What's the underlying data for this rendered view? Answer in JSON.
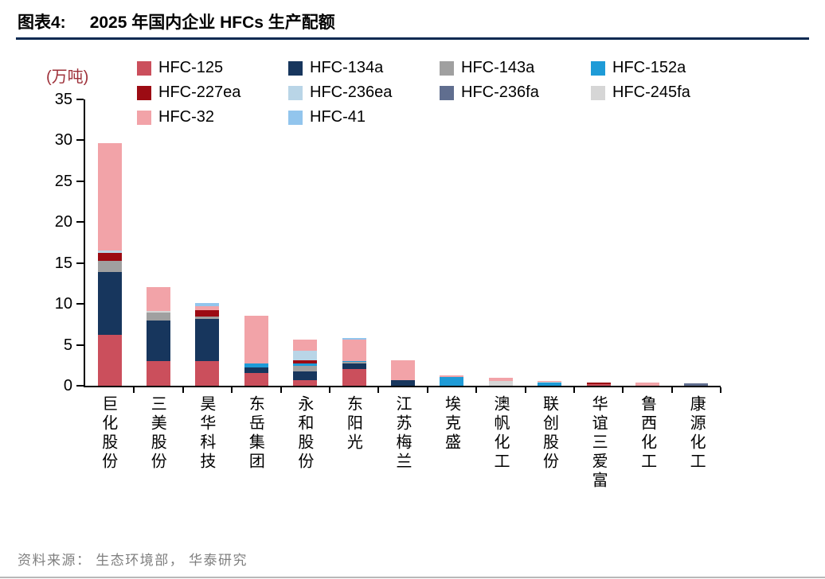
{
  "header": {
    "figure_label": "图表4:",
    "title": "2025 年国内企业 HFCs 生产配额"
  },
  "footer": {
    "source": "资料来源： 生态环境部， 华泰研究"
  },
  "chart_data": {
    "type": "bar",
    "stacked": true,
    "title": "2025 年国内企业 HFCs 生产配额",
    "ylabel": "(万吨)",
    "ylim": [
      0,
      35
    ],
    "yticks": [
      0,
      5,
      10,
      15,
      20,
      25,
      30,
      35
    ],
    "grid": false,
    "legend_position": "top",
    "categories": [
      "巨化股份",
      "三美股份",
      "昊华科技",
      "东岳集团",
      "永和股份",
      "东阳光",
      "江苏梅兰",
      "埃克盛",
      "澳帆化工",
      "联创股份",
      "华谊三爱富",
      "鲁西化工",
      "康源化工"
    ],
    "series": [
      {
        "name": "HFC-125",
        "color": "#cb4f5c",
        "values": [
          6.2,
          3.0,
          3.0,
          1.6,
          0.7,
          2.0,
          0,
          0,
          0,
          0,
          0.15,
          0,
          0
        ]
      },
      {
        "name": "HFC-134a",
        "color": "#17365d",
        "values": [
          7.7,
          5.0,
          5.2,
          0.6,
          1.1,
          0.7,
          0.7,
          0,
          0,
          0,
          0,
          0,
          0
        ]
      },
      {
        "name": "HFC-143a",
        "color": "#a0a0a0",
        "values": [
          1.4,
          0.9,
          0.3,
          0,
          0.6,
          0.2,
          0,
          0,
          0,
          0,
          0,
          0,
          0
        ]
      },
      {
        "name": "HFC-152a",
        "color": "#1e9bd7",
        "values": [
          0,
          0,
          0,
          0.5,
          0.3,
          0.1,
          0,
          1.1,
          0,
          0.4,
          0,
          0,
          0
        ]
      },
      {
        "name": "HFC-227ea",
        "color": "#9c0b13",
        "values": [
          0.9,
          0,
          0.7,
          0,
          0.4,
          0,
          0,
          0,
          0,
          0,
          0.25,
          0,
          0
        ]
      },
      {
        "name": "HFC-236ea",
        "color": "#b9d5e7",
        "values": [
          0.3,
          0,
          0,
          0,
          1.2,
          0,
          0,
          0,
          0,
          0,
          0,
          0,
          0
        ]
      },
      {
        "name": "HFC-236fa",
        "color": "#606e8f",
        "values": [
          0,
          0,
          0,
          0,
          0,
          0,
          0,
          0,
          0,
          0,
          0,
          0,
          0.3
        ]
      },
      {
        "name": "HFC-245fa",
        "color": "#d6d6d6",
        "values": [
          0,
          0.2,
          0,
          0,
          0,
          0,
          0,
          0,
          0.6,
          0.1,
          0,
          0,
          0
        ]
      },
      {
        "name": "HFC-32",
        "color": "#f2a3a8",
        "values": [
          13.2,
          3.0,
          0.5,
          5.9,
          1.3,
          2.6,
          2.4,
          0.2,
          0.4,
          0.1,
          0,
          0.4,
          0
        ]
      },
      {
        "name": "HFC-41",
        "color": "#92c5ed",
        "values": [
          0,
          0,
          0.4,
          0,
          0,
          0.2,
          0,
          0,
          0,
          0,
          0,
          0,
          0
        ]
      }
    ]
  }
}
